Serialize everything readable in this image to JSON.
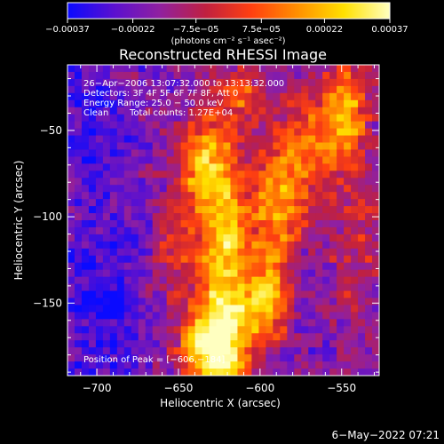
{
  "chart_data": {
    "type": "heatmap",
    "title": "Reconstructed RHESSI Image",
    "xlabel": "Heliocentric X (arcsec)",
    "ylabel": "Heliocentric Y (arcsec)",
    "xlim": [
      -718,
      -527
    ],
    "ylim": [
      -192,
      -12
    ],
    "x_ticks": [
      -700,
      -650,
      -600,
      -550
    ],
    "x_tick_labels": [
      "−700",
      "−650",
      "−600",
      "−550"
    ],
    "y_ticks": [
      -150,
      -100,
      -50
    ],
    "y_tick_labels": [
      "−150",
      "−100",
      "−50"
    ],
    "colorbar": {
      "range": [
        -0.00037,
        0.00037
      ],
      "tick_values": [
        -0.00037,
        -0.00022,
        -7.5e-05,
        7.5e-05,
        0.00022,
        0.00037
      ],
      "tick_labels": [
        "−0.00037",
        "−0.00022",
        "−7.5e−05",
        "7.5e−05",
        "0.00022",
        "0.00037"
      ],
      "unit_label": "(photons cm⁻² s⁻¹ asec⁻²)",
      "colors": [
        "#0a0aff",
        "#5a10d0",
        "#9020a0",
        "#c02040",
        "#ff4010",
        "#ff9000",
        "#ffe000",
        "#ffffc0"
      ]
    },
    "annotations": {
      "time": "26−Apr−2006 13:07:32.000 to 13:13:32.000",
      "detectors": "Detectors: 3F 4F 5F 6F 7F 8F, Att 0",
      "energy": "Energy Range: 25.0 − 50.0 keV",
      "method": "Clean",
      "counts": "Total counts: 1.27E+04",
      "peak": "Position of Peak = [−606,−184]"
    },
    "features": [
      {
        "x": -623,
        "y": -130,
        "sx": 12,
        "sy": 60,
        "amp": 1.0
      },
      {
        "x": -630,
        "y": -175,
        "sx": 14,
        "sy": 15,
        "amp": 0.9
      },
      {
        "x": -597,
        "y": -150,
        "sx": 10,
        "sy": 18,
        "amp": 0.8
      },
      {
        "x": -590,
        "y": -95,
        "sx": 10,
        "sy": 25,
        "amp": 0.8
      },
      {
        "x": -638,
        "y": -70,
        "sx": 10,
        "sy": 18,
        "amp": 0.6
      },
      {
        "x": -548,
        "y": -40,
        "sx": 10,
        "sy": 20,
        "amp": 0.85
      },
      {
        "x": -572,
        "y": -60,
        "sx": 12,
        "sy": 25,
        "amp": 0.55
      },
      {
        "x": -655,
        "y": -120,
        "sx": 10,
        "sy": 20,
        "amp": 0.4
      },
      {
        "x": -610,
        "y": -30,
        "sx": 12,
        "sy": 12,
        "amp": 0.4
      },
      {
        "x": -542,
        "y": -120,
        "sx": 12,
        "sy": 40,
        "amp": 0.3
      }
    ],
    "low_regions": [
      {
        "x": -700,
        "y": -40,
        "sx": 12,
        "sy": 30,
        "amp": 0.6
      },
      {
        "x": -698,
        "y": -155,
        "sx": 18,
        "sy": 35,
        "amp": 0.55
      },
      {
        "x": -680,
        "y": -110,
        "sx": 10,
        "sy": 12,
        "amp": 0.3
      }
    ]
  },
  "footer": {
    "date": "6−May−2022 07:21"
  }
}
